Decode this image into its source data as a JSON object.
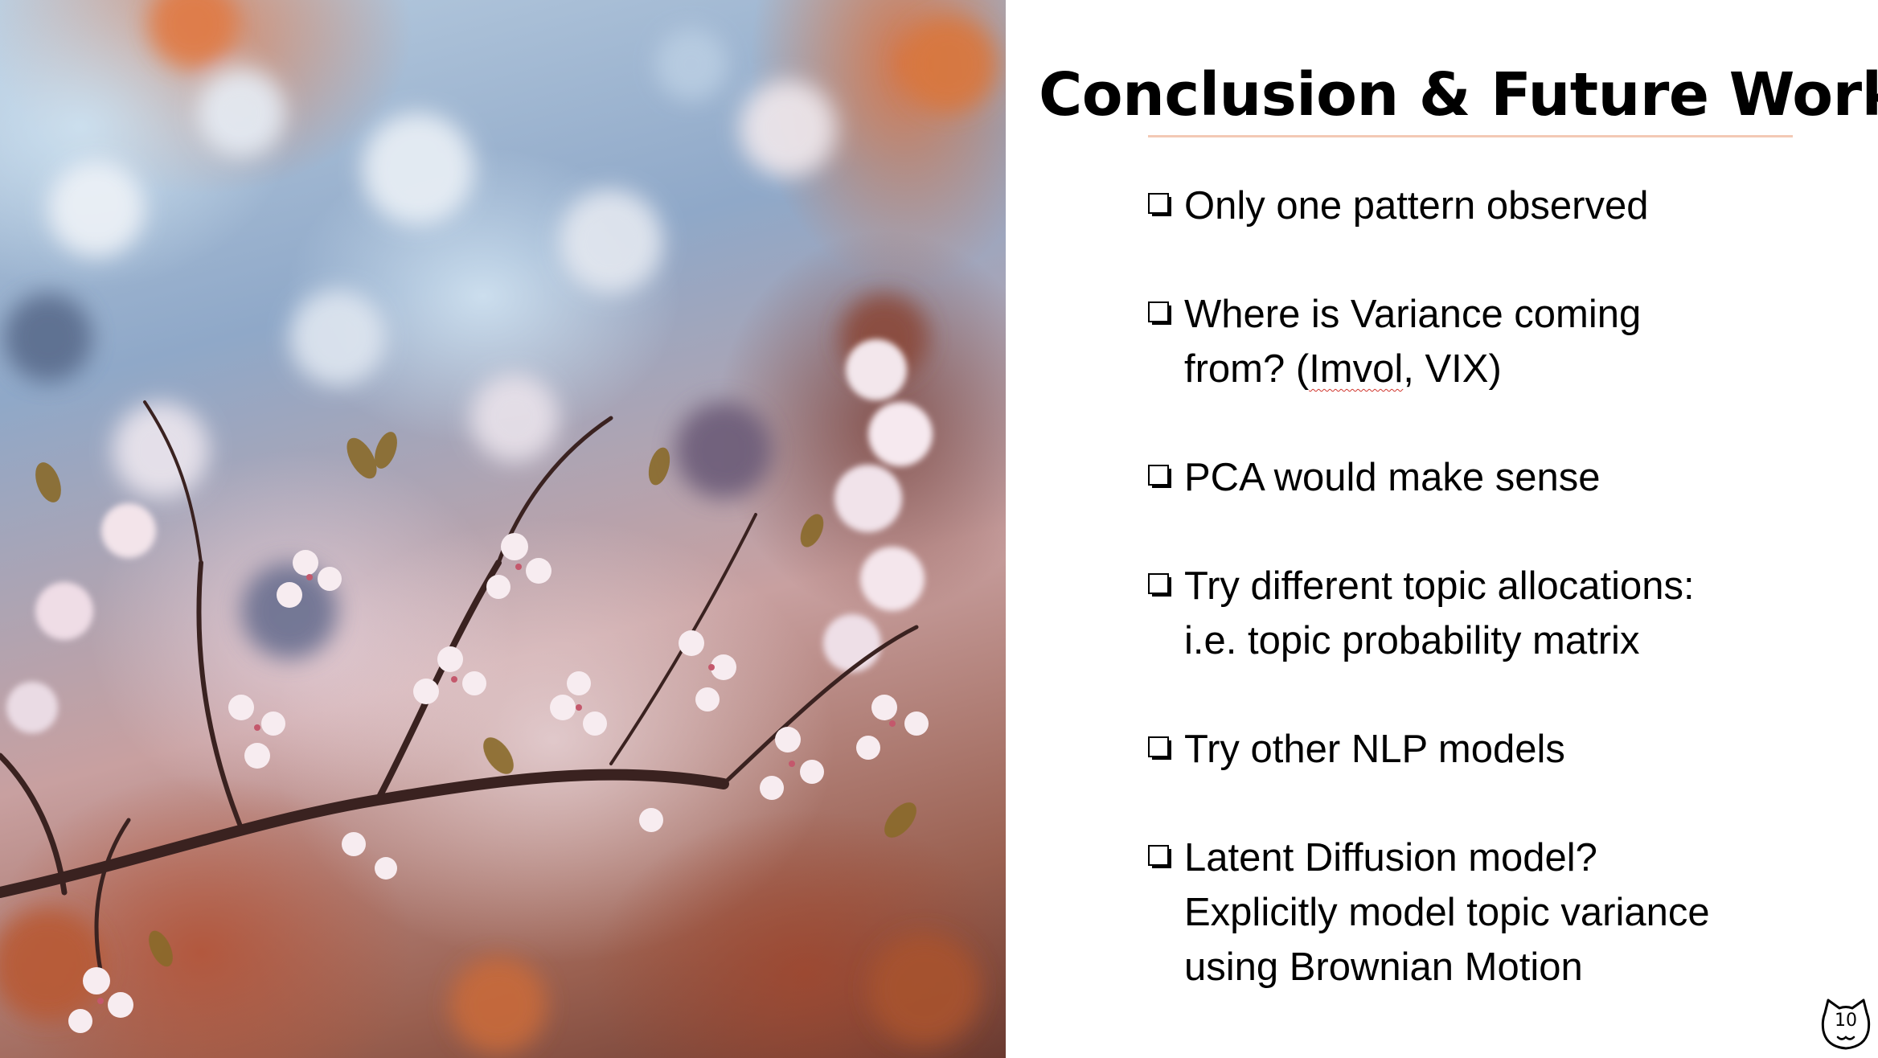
{
  "slide": {
    "title": "Conclusion & Future Work",
    "bullets": [
      {
        "lines": [
          "Only one pattern observed"
        ]
      },
      {
        "lines": [
          "Where is Variance coming",
          "from? ("
        ],
        "underlined": "Imvol",
        "after": ", VIX)"
      },
      {
        "lines": [
          "PCA would make sense"
        ]
      },
      {
        "lines": [
          "Try different topic allocations:",
          "i.e. topic probability matrix"
        ]
      },
      {
        "lines": [
          "Try other NLP models"
        ]
      },
      {
        "lines": [
          "Latent Diffusion model?",
          "Explicitly model topic variance",
          "using Brownian Motion"
        ]
      }
    ],
    "page_number": "10"
  },
  "image": {
    "subject": "cherry blossom branches photo",
    "colors": {
      "sky": "#c9dbea",
      "blossom": "#f2e4ea",
      "warm_foliage": "#c8602f",
      "branch": "#3a2220"
    }
  },
  "icons": {
    "bullet": "checkbox-icon",
    "logo": "cat-face-icon"
  },
  "colors": {
    "title_underline": "#f3c9b5",
    "text": "#000000",
    "spellcheck": "#d0342c"
  }
}
